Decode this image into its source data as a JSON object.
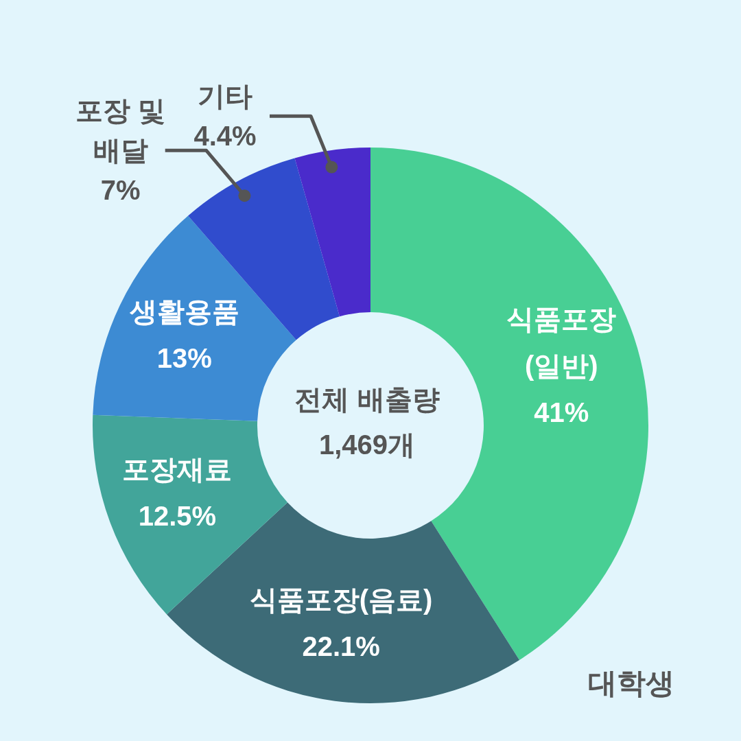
{
  "chart_data": {
    "type": "donut",
    "subtitle": "대학생",
    "categories": [
      "식품포장\n(일반)",
      "식품포장(음료)",
      "포장재료",
      "생활용품",
      "포장 및\n배달",
      "기타"
    ],
    "values": [
      41,
      22.1,
      12.5,
      13,
      7,
      4.4
    ],
    "value_labels": [
      "41%",
      "22.1%",
      "12.5%",
      "13%",
      "7%",
      "4.4%"
    ],
    "colors": [
      "#48cf94",
      "#3d6b77",
      "#42a59a",
      "#3d8bd3",
      "#304ccd",
      "#4a2bcb"
    ],
    "annotations": [
      "전체 배출량\n1,469개"
    ],
    "legend": false
  }
}
